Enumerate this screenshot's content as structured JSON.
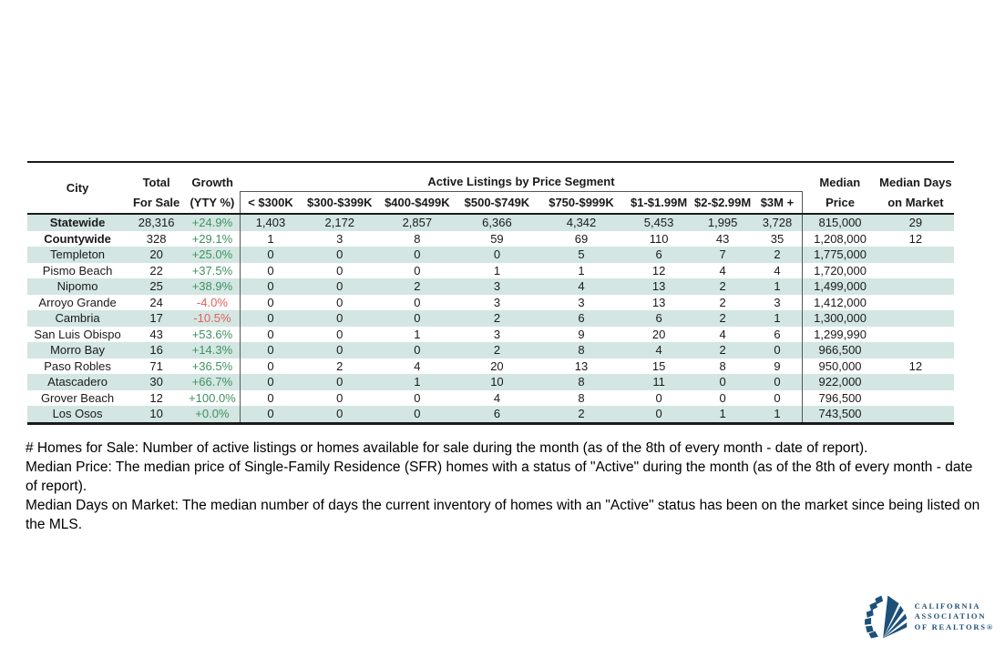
{
  "table": {
    "group_header": "Active Listings by Price Segment",
    "headers": {
      "city": "City",
      "total": [
        "Total",
        "For Sale"
      ],
      "growth": [
        "Growth",
        "(YTY %)"
      ],
      "segments": [
        "< $300K",
        "$300-$399K",
        "$400-$499K",
        "$500-$749K",
        "$750-$999K",
        "$1-$1.99M",
        "$2-$2.99M",
        "$3M +"
      ],
      "median_price": [
        "Median",
        "Price"
      ],
      "median_days": [
        "Median Days",
        "on Market"
      ]
    },
    "rows": [
      {
        "city": "Statewide",
        "bold": true,
        "total": "28,316",
        "growth": "+24.9%",
        "segments": [
          "1,403",
          "2,172",
          "2,857",
          "6,366",
          "4,342",
          "5,453",
          "1,995",
          "3,728"
        ],
        "median_price": "815,000",
        "median_days": "29"
      },
      {
        "city": "Countywide",
        "bold": true,
        "total": "328",
        "growth": "+29.1%",
        "segments": [
          "1",
          "3",
          "8",
          "59",
          "69",
          "110",
          "43",
          "35"
        ],
        "median_price": "1,208,000",
        "median_days": "12"
      },
      {
        "city": "Templeton",
        "bold": false,
        "total": "20",
        "growth": "+25.0%",
        "segments": [
          "0",
          "0",
          "0",
          "0",
          "5",
          "6",
          "7",
          "2"
        ],
        "median_price": "1,775,000",
        "median_days": ""
      },
      {
        "city": "Pismo Beach",
        "bold": false,
        "total": "22",
        "growth": "+37.5%",
        "segments": [
          "0",
          "0",
          "0",
          "1",
          "1",
          "12",
          "4",
          "4"
        ],
        "median_price": "1,720,000",
        "median_days": ""
      },
      {
        "city": "Nipomo",
        "bold": false,
        "total": "25",
        "growth": "+38.9%",
        "segments": [
          "0",
          "0",
          "2",
          "3",
          "4",
          "13",
          "2",
          "1"
        ],
        "median_price": "1,499,000",
        "median_days": ""
      },
      {
        "city": "Arroyo Grande",
        "bold": false,
        "total": "24",
        "growth": "-4.0%",
        "segments": [
          "0",
          "0",
          "0",
          "3",
          "3",
          "13",
          "2",
          "3"
        ],
        "median_price": "1,412,000",
        "median_days": ""
      },
      {
        "city": "Cambria",
        "bold": false,
        "total": "17",
        "growth": "-10.5%",
        "segments": [
          "0",
          "0",
          "0",
          "2",
          "6",
          "6",
          "2",
          "1"
        ],
        "median_price": "1,300,000",
        "median_days": ""
      },
      {
        "city": "San Luis Obispo",
        "bold": false,
        "total": "43",
        "growth": "+53.6%",
        "segments": [
          "0",
          "0",
          "1",
          "3",
          "9",
          "20",
          "4",
          "6"
        ],
        "median_price": "1,299,990",
        "median_days": ""
      },
      {
        "city": "Morro Bay",
        "bold": false,
        "total": "16",
        "growth": "+14.3%",
        "segments": [
          "0",
          "0",
          "0",
          "2",
          "8",
          "4",
          "2",
          "0"
        ],
        "median_price": "966,500",
        "median_days": ""
      },
      {
        "city": "Paso Robles",
        "bold": false,
        "total": "71",
        "growth": "+36.5%",
        "segments": [
          "0",
          "2",
          "4",
          "20",
          "13",
          "15",
          "8",
          "9"
        ],
        "median_price": "950,000",
        "median_days": "12"
      },
      {
        "city": "Atascadero",
        "bold": false,
        "total": "30",
        "growth": "+66.7%",
        "segments": [
          "0",
          "0",
          "1",
          "10",
          "8",
          "11",
          "0",
          "0"
        ],
        "median_price": "922,000",
        "median_days": ""
      },
      {
        "city": "Grover Beach",
        "bold": false,
        "total": "12",
        "growth": "+100.0%",
        "segments": [
          "0",
          "0",
          "0",
          "4",
          "8",
          "0",
          "0",
          "0"
        ],
        "median_price": "796,500",
        "median_days": ""
      },
      {
        "city": "Los Osos",
        "bold": false,
        "total": "10",
        "growth": "+0.0%",
        "segments": [
          "0",
          "0",
          "0",
          "6",
          "2",
          "0",
          "1",
          "1"
        ],
        "median_price": "743,500",
        "median_days": ""
      }
    ]
  },
  "footnotes": [
    "# Homes for Sale: Number of active listings or homes available for sale during the month (as of the 8th of every month - date of report).",
    "Median Price: The median price of Single-Family Residence (SFR) homes with a status of \"Active\" during the month (as of the 8th of every month - date of report).",
    "Median Days on Market: The median number of days the current inventory of homes with an \"Active\" status has been on the market since being listed on the MLS."
  ],
  "logo": {
    "lines": [
      "CALIFORNIA",
      "ASSOCIATION",
      "OF REALTORS®"
    ]
  },
  "colors": {
    "stripe": "#d3e6e2",
    "positive_growth": "#3f9161",
    "negative_growth": "#e0615c",
    "logo_blue": "#1c5078"
  }
}
